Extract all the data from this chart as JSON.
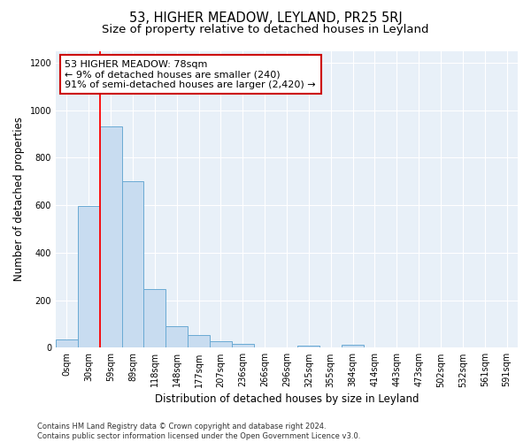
{
  "title": "53, HIGHER MEADOW, LEYLAND, PR25 5RJ",
  "subtitle": "Size of property relative to detached houses in Leyland",
  "xlabel": "Distribution of detached houses by size in Leyland",
  "ylabel": "Number of detached properties",
  "bar_color": "#c8dcf0",
  "bar_edge_color": "#6aaad4",
  "bg_color": "#e8f0f8",
  "grid_color": "#ffffff",
  "categories": [
    "0sqm",
    "30sqm",
    "59sqm",
    "89sqm",
    "118sqm",
    "148sqm",
    "177sqm",
    "207sqm",
    "236sqm",
    "266sqm",
    "296sqm",
    "325sqm",
    "355sqm",
    "384sqm",
    "414sqm",
    "443sqm",
    "473sqm",
    "502sqm",
    "532sqm",
    "561sqm",
    "591sqm"
  ],
  "values": [
    35,
    595,
    930,
    700,
    245,
    90,
    55,
    27,
    15,
    0,
    0,
    10,
    0,
    12,
    0,
    0,
    0,
    0,
    0,
    0,
    0
  ],
  "annotation_text": "53 HIGHER MEADOW: 78sqm\n← 9% of detached houses are smaller (240)\n91% of semi-detached houses are larger (2,420) →",
  "annotation_box_color": "#ffffff",
  "annotation_box_edge_color": "#cc0000",
  "vline_x": 2.0,
  "ylim": [
    0,
    1250
  ],
  "yticks": [
    0,
    200,
    400,
    600,
    800,
    1000,
    1200
  ],
  "footer": "Contains HM Land Registry data © Crown copyright and database right 2024.\nContains public sector information licensed under the Open Government Licence v3.0.",
  "title_fontsize": 10.5,
  "subtitle_fontsize": 9.5,
  "ylabel_fontsize": 8.5,
  "xlabel_fontsize": 8.5,
  "tick_fontsize": 7,
  "annotation_fontsize": 8,
  "footer_fontsize": 6
}
